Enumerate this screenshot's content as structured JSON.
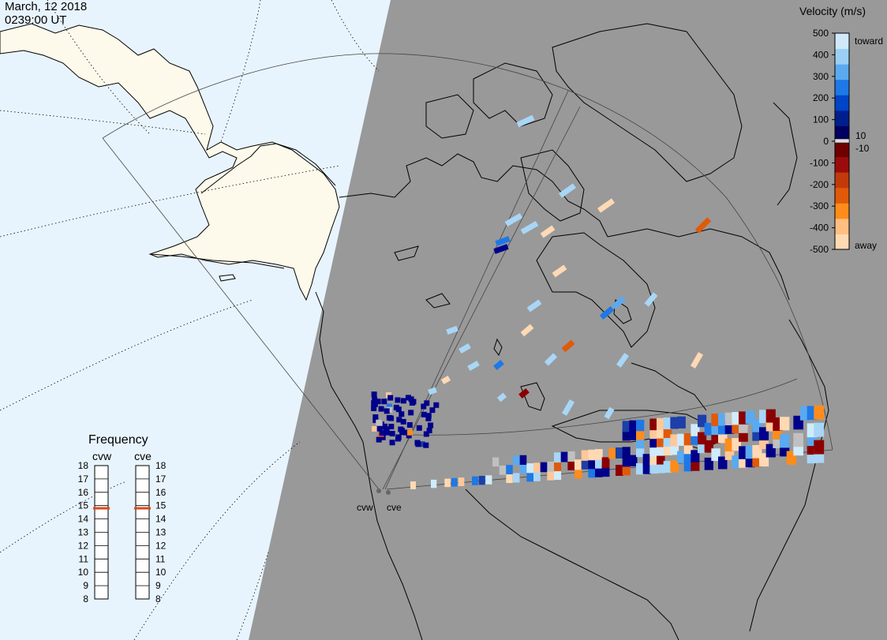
{
  "header": {
    "date": "March, 12 2018",
    "time": "0239:00 UT"
  },
  "colorbar": {
    "title": "Velocity (m/s)",
    "ticks": [
      {
        "value": 500,
        "label": "500"
      },
      {
        "value": 400,
        "label": "400"
      },
      {
        "value": 300,
        "label": "300"
      },
      {
        "value": 200,
        "label": "200"
      },
      {
        "value": 100,
        "label": "100"
      },
      {
        "value": 0,
        "label": "0"
      },
      {
        "value": -100,
        "label": "-100"
      },
      {
        "value": -200,
        "label": "-200"
      },
      {
        "value": -300,
        "label": "-300"
      },
      {
        "value": -400,
        "label": "-400"
      },
      {
        "value": -500,
        "label": "-500"
      }
    ],
    "inner_labels": [
      {
        "value": 10,
        "label": "10"
      },
      {
        "value": -10,
        "label": "-10"
      }
    ],
    "toward_label": "toward",
    "away_label": "away",
    "colors": [
      "#ffd9b4",
      "#ffbf80",
      "#ff8c1a",
      "#e05a0a",
      "#c33a0a",
      "#9a0c0c",
      "#6e0000",
      "#000060",
      "#001f8c",
      "#0044c8",
      "#1e78e6",
      "#5aaaf0",
      "#9ccff5",
      "#cfe9fb"
    ]
  },
  "frequency": {
    "title": "Frequency",
    "radars": [
      {
        "name": "cvw",
        "current_mhz": 14.8
      },
      {
        "name": "cve",
        "current_mhz": 14.8
      }
    ],
    "scale_min": 8,
    "scale_max": 18,
    "tick_labels": [
      "18",
      "17",
      "16",
      "15",
      "14",
      "13",
      "12",
      "11",
      "10",
      "9",
      "8"
    ],
    "marker_color": "#d94a1a"
  },
  "radar_sites": [
    {
      "name": "cvw"
    },
    {
      "name": "cve"
    }
  ],
  "map_colors": {
    "ocean": "#e8f4fd",
    "land": "#fdfaeb",
    "night": "#999999",
    "coast": "#000000"
  }
}
